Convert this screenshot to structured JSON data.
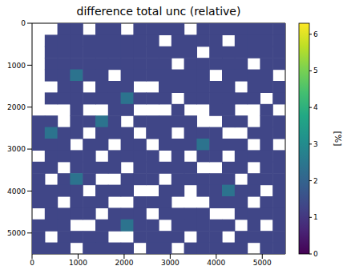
{
  "chart_data": {
    "type": "heatmap",
    "title": "difference total unc (relative)",
    "x": [
      137.5,
      412.5,
      687.5,
      962.5,
      1237.5,
      1512.5,
      1787.5,
      2062.5,
      2337.5,
      2612.5,
      2887.5,
      3162.5,
      3437.5,
      3712.5,
      3987.5,
      4262.5,
      4537.5,
      4812.5,
      5087.5,
      5362.5
    ],
    "y": [
      137.5,
      412.5,
      687.5,
      962.5,
      1237.5,
      1512.5,
      1787.5,
      2062.5,
      2337.5,
      2612.5,
      2887.5,
      3162.5,
      3437.5,
      3712.5,
      3987.5,
      4262.5,
      4537.5,
      4812.5,
      5087.5,
      5362.5
    ],
    "xlim": [
      0,
      5500
    ],
    "ylim": [
      5500,
      0
    ],
    "xticks": [
      0,
      1000,
      2000,
      3000,
      4000,
      5000
    ],
    "yticks": [
      0,
      1000,
      2000,
      3000,
      4000,
      5000
    ],
    "cells": [
      [
        null,
        null,
        1.3,
        1.3,
        null,
        1.3,
        1.3,
        null,
        1.3,
        1.3,
        1.3,
        1.3,
        null,
        1.3,
        1.3,
        1.3,
        1.3,
        1.3,
        1.3,
        1.3
      ],
      [
        null,
        1.3,
        1.3,
        1.3,
        1.3,
        1.3,
        1.3,
        1.3,
        1.3,
        1.3,
        null,
        1.3,
        1.3,
        1.3,
        1.3,
        null,
        1.3,
        1.3,
        1.3,
        1.3
      ],
      [
        null,
        1.3,
        1.3,
        1.3,
        1.3,
        1.3,
        1.3,
        1.3,
        1.3,
        1.3,
        1.3,
        1.3,
        1.3,
        null,
        1.3,
        1.3,
        1.3,
        1.3,
        1.3,
        1.3
      ],
      [
        null,
        1.3,
        1.3,
        1.3,
        1.3,
        1.3,
        1.3,
        1.3,
        1.3,
        1.3,
        1.3,
        null,
        1.3,
        1.3,
        1.3,
        1.3,
        1.3,
        null,
        1.3,
        1.3
      ],
      [
        null,
        1.3,
        1.3,
        2.4,
        1.3,
        1.3,
        null,
        1.3,
        1.3,
        1.3,
        1.3,
        1.3,
        1.3,
        1.3,
        null,
        1.3,
        1.3,
        1.3,
        1.3,
        null
      ],
      [
        null,
        null,
        1.3,
        1.3,
        null,
        1.3,
        1.3,
        1.3,
        null,
        null,
        1.3,
        1.3,
        1.3,
        1.3,
        1.3,
        1.3,
        null,
        1.3,
        1.3,
        1.3
      ],
      [
        null,
        1.3,
        1.3,
        1.3,
        1.3,
        1.3,
        1.3,
        2.4,
        1.3,
        1.3,
        1.3,
        null,
        1.3,
        1.3,
        1.3,
        1.3,
        1.3,
        1.3,
        null,
        1.3
      ],
      [
        null,
        null,
        null,
        1.3,
        null,
        null,
        1.3,
        1.3,
        null,
        null,
        null,
        1.3,
        null,
        null,
        1.3,
        1.3,
        null,
        null,
        1.3,
        null
      ],
      [
        1.3,
        1.3,
        null,
        1.3,
        1.3,
        2.4,
        1.3,
        null,
        1.3,
        1.3,
        1.3,
        1.3,
        1.3,
        null,
        null,
        1.3,
        1.3,
        null,
        1.3,
        1.3
      ],
      [
        1.3,
        2.4,
        1.3,
        1.3,
        null,
        1.3,
        1.3,
        1.3,
        null,
        1.3,
        1.3,
        null,
        1.3,
        1.3,
        1.3,
        null,
        null,
        1.3,
        1.3,
        1.3
      ],
      [
        1.3,
        1.3,
        1.3,
        null,
        1.3,
        1.3,
        null,
        1.3,
        1.3,
        null,
        1.3,
        1.3,
        1.3,
        2.4,
        1.3,
        1.3,
        1.3,
        null,
        1.3,
        null
      ],
      [
        null,
        1.3,
        1.3,
        1.3,
        1.3,
        null,
        1.3,
        1.3,
        1.3,
        1.3,
        null,
        1.3,
        null,
        1.3,
        1.3,
        null,
        1.3,
        1.3,
        1.3,
        1.3
      ],
      [
        1.3,
        1.3,
        null,
        1.3,
        1.3,
        1.3,
        1.3,
        null,
        1.3,
        1.3,
        1.3,
        1.3,
        1.3,
        null,
        null,
        1.3,
        1.3,
        null,
        1.3,
        1.3
      ],
      [
        1.3,
        null,
        1.3,
        2.4,
        1.3,
        null,
        null,
        1.3,
        1.3,
        1.3,
        null,
        1.3,
        1.3,
        1.3,
        1.3,
        1.3,
        null,
        1.3,
        1.3,
        1.3
      ],
      [
        1.3,
        1.3,
        1.3,
        1.3,
        null,
        1.3,
        1.3,
        1.3,
        null,
        null,
        1.3,
        1.3,
        null,
        1.3,
        1.3,
        2.4,
        1.3,
        1.3,
        null,
        1.3
      ],
      [
        1.3,
        1.3,
        null,
        1.3,
        1.3,
        1.3,
        null,
        null,
        1.3,
        1.3,
        1.3,
        null,
        null,
        null,
        1.3,
        1.3,
        1.3,
        null,
        1.3,
        1.3
      ],
      [
        null,
        1.3,
        1.3,
        1.3,
        1.3,
        null,
        1.3,
        1.3,
        1.3,
        null,
        1.3,
        1.3,
        1.3,
        1.3,
        null,
        null,
        1.3,
        1.3,
        1.3,
        1.3
      ],
      [
        1.3,
        1.3,
        1.3,
        null,
        null,
        1.3,
        1.3,
        2.4,
        1.3,
        1.3,
        null,
        1.3,
        1.3,
        1.3,
        1.3,
        1.3,
        null,
        1.3,
        null,
        1.3
      ],
      [
        1.3,
        null,
        1.3,
        1.3,
        1.3,
        1.3,
        null,
        null,
        1.3,
        1.3,
        1.3,
        1.3,
        null,
        1.3,
        1.3,
        null,
        1.3,
        1.3,
        1.3,
        1.3
      ],
      [
        1.3,
        1.3,
        1.3,
        null,
        1.3,
        1.3,
        1.3,
        1.3,
        null,
        1.3,
        1.3,
        null,
        1.3,
        1.3,
        1.3,
        1.3,
        1.3,
        null,
        1.3,
        1.3
      ]
    ],
    "colorbar": {
      "range": [
        0,
        6.3
      ],
      "ticks": [
        0,
        1,
        2,
        3,
        4,
        5,
        6
      ],
      "label": "[%]"
    }
  }
}
